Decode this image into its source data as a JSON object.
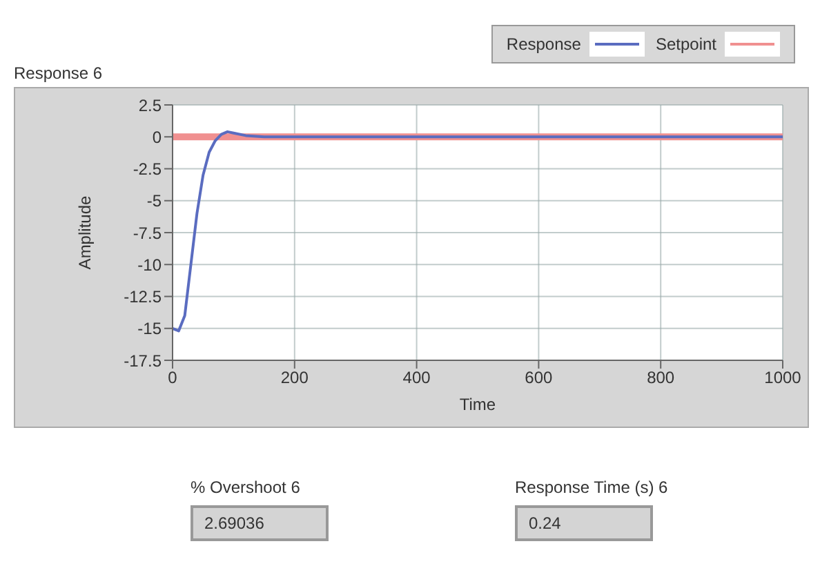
{
  "chart_data": {
    "type": "line",
    "title": "Response 6",
    "xlabel": "Time",
    "ylabel": "Amplitude",
    "xlim": [
      0,
      1000
    ],
    "xticks": [
      0,
      200,
      400,
      600,
      800,
      1000
    ],
    "ylim": [
      -17.5,
      2.5
    ],
    "yticks": [
      2.5,
      0,
      -2.5,
      -5,
      -7.5,
      -10,
      -12.5,
      -15,
      -17.5
    ],
    "grid": true,
    "legend": "top right",
    "marker": "none",
    "line_style": "solid",
    "series": [
      {
        "name": "Setpoint",
        "color": "#f09090",
        "x": [
          0,
          1000
        ],
        "values": [
          0,
          0
        ]
      },
      {
        "name": "Response",
        "color": "#5a6cc0",
        "x": [
          0,
          10,
          20,
          30,
          40,
          50,
          60,
          70,
          80,
          90,
          100,
          120,
          150,
          1000
        ],
        "values": [
          -15,
          -15.2,
          -14,
          -10,
          -6,
          -3,
          -1.2,
          -0.3,
          0.2,
          0.4,
          0.3,
          0.1,
          0,
          0
        ]
      }
    ],
    "annotations": [
      "% Overshoot 6",
      "2.69036",
      "Response Time (s) 6",
      "0.24"
    ]
  }
}
